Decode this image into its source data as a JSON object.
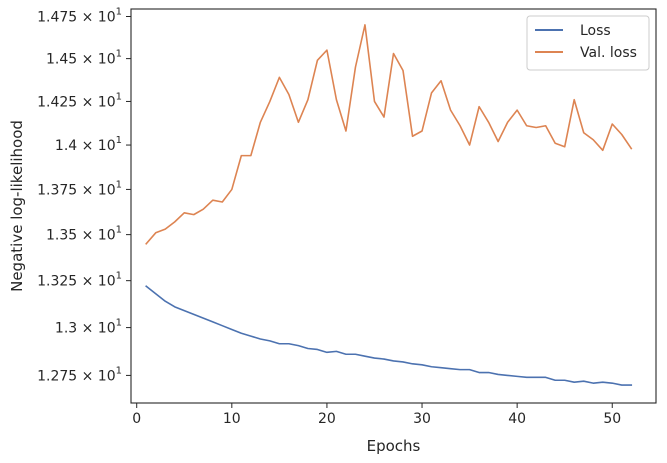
{
  "chart_data": {
    "type": "line",
    "title": "",
    "xlabel": "Epochs",
    "ylabel": "Negative log-likelihood",
    "xlim": [
      -0.6,
      54.6
    ],
    "ylim": [
      12.608,
      14.795
    ],
    "y_scale": "log",
    "grid": false,
    "legend_position": "top-right",
    "x_ticks": [
      0,
      10,
      20,
      30,
      40,
      50
    ],
    "x_tick_labels": [
      "0",
      "10",
      "20",
      "30",
      "40",
      "50"
    ],
    "y_ticks": [
      12.75,
      13.0,
      13.25,
      13.5,
      13.75,
      14.0,
      14.25,
      14.5,
      14.75
    ],
    "y_tick_labels": [
      {
        "mantissa": "1.275",
        "base": "10",
        "exp": "1"
      },
      {
        "mantissa": "1.3",
        "base": "10",
        "exp": "1"
      },
      {
        "mantissa": "1.325",
        "base": "10",
        "exp": "1"
      },
      {
        "mantissa": "1.35",
        "base": "10",
        "exp": "1"
      },
      {
        "mantissa": "1.375",
        "base": "10",
        "exp": "1"
      },
      {
        "mantissa": "1.4",
        "base": "10",
        "exp": "1"
      },
      {
        "mantissa": "1.425",
        "base": "10",
        "exp": "1"
      },
      {
        "mantissa": "1.45",
        "base": "10",
        "exp": "1"
      },
      {
        "mantissa": "1.475",
        "base": "10",
        "exp": "1"
      }
    ],
    "x": [
      1,
      2,
      3,
      4,
      5,
      6,
      7,
      8,
      9,
      10,
      11,
      12,
      13,
      14,
      15,
      16,
      17,
      18,
      19,
      20,
      21,
      22,
      23,
      24,
      25,
      26,
      27,
      28,
      29,
      30,
      31,
      32,
      33,
      34,
      35,
      36,
      37,
      38,
      39,
      40,
      41,
      42,
      43,
      44,
      45,
      46,
      47,
      48,
      49,
      50,
      51,
      52
    ],
    "series": [
      {
        "name": "Loss",
        "color": "#4c72b0",
        "values": [
          13.22,
          13.18,
          13.14,
          13.11,
          13.09,
          13.07,
          13.05,
          13.03,
          13.01,
          12.99,
          12.97,
          12.955,
          12.94,
          12.93,
          12.915,
          12.915,
          12.905,
          12.89,
          12.885,
          12.87,
          12.875,
          12.86,
          12.86,
          12.85,
          12.84,
          12.835,
          12.825,
          12.82,
          12.81,
          12.805,
          12.795,
          12.79,
          12.785,
          12.78,
          12.78,
          12.765,
          12.765,
          12.755,
          12.75,
          12.745,
          12.74,
          12.74,
          12.74,
          12.725,
          12.725,
          12.715,
          12.72,
          12.71,
          12.715,
          12.71,
          12.7,
          12.7
        ]
      },
      {
        "name": "Val. loss",
        "color": "#dd8452",
        "values": [
          13.45,
          13.51,
          13.53,
          13.57,
          13.62,
          13.61,
          13.64,
          13.69,
          13.68,
          13.75,
          13.94,
          13.94,
          14.13,
          14.25,
          14.39,
          14.29,
          14.13,
          14.26,
          14.49,
          14.55,
          14.26,
          14.08,
          14.45,
          14.7,
          14.25,
          14.16,
          14.53,
          14.43,
          14.05,
          14.08,
          14.3,
          14.37,
          14.2,
          14.11,
          14.0,
          14.22,
          14.13,
          14.02,
          14.13,
          14.2,
          14.11,
          14.1,
          14.11,
          14.01,
          13.99,
          14.26,
          14.07,
          14.03,
          13.97,
          14.12,
          14.06,
          13.98
        ]
      }
    ]
  }
}
